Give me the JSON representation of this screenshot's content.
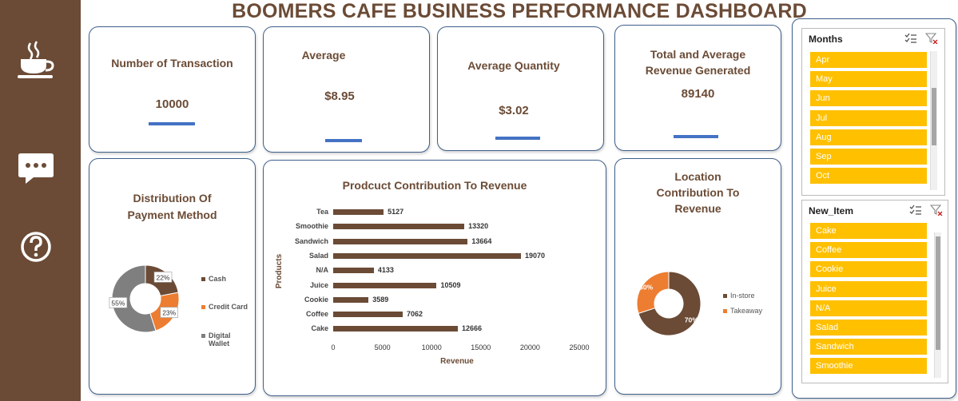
{
  "dashboard": {
    "title": "BOOMERS CAFE BUSINESS PERFORMANCE DASHBOARD"
  },
  "sidebar": {
    "icons": [
      "coffee-cup-icon",
      "chat-icon",
      "help-icon"
    ]
  },
  "kpis": {
    "transactions": {
      "label": "Number of Transaction",
      "value": "10000"
    },
    "average": {
      "label": "Average",
      "value": "$8.95"
    },
    "avg_quantity": {
      "label": "Average Quantity",
      "value": "$3.02"
    },
    "revenue": {
      "label_line1": "Total and Average",
      "label_line2": "Revenue Generated",
      "value": "89140"
    }
  },
  "payment_chart": {
    "title_line1": "Distribution Of",
    "title_line2": "Payment Method",
    "legend": [
      "Cash",
      "Credit Card",
      "Digital",
      "Wallet"
    ],
    "colors": {
      "cash": "#6b4b36",
      "credit": "#ed7d31",
      "digital": "#7f7f7f"
    }
  },
  "location_chart": {
    "title_line1": "Location",
    "title_line2": "Contribution To",
    "title_line3": "Revenue",
    "legend": [
      "In-store",
      "Takeaway"
    ]
  },
  "chart_data": [
    {
      "type": "pie",
      "title": "Distribution Of Payment Method",
      "categories": [
        "Cash",
        "Credit Card",
        "Digital Wallet"
      ],
      "values": [
        22,
        23,
        55
      ],
      "labels": [
        "22%",
        "23%",
        "55%"
      ]
    },
    {
      "type": "bar",
      "orientation": "horizontal",
      "title": "Prodcuct Contribution To Revenue",
      "xlabel": "Revenue",
      "ylabel": "Products",
      "categories": [
        "Tea",
        "Smoothie",
        "Sandwich",
        "Salad",
        "N/A",
        "Juice",
        "Cookie",
        "Coffee",
        "Cake"
      ],
      "values": [
        5127,
        13320,
        13664,
        19070,
        4133,
        10509,
        3589,
        7062,
        12666
      ],
      "value_labels": [
        "5127",
        "13320",
        "13664",
        "19070",
        "4133",
        "10509",
        "3589",
        "7062",
        "12666"
      ],
      "xlim": [
        0,
        25000
      ],
      "xticks": [
        "0",
        "5000",
        "10000",
        "15000",
        "20000",
        "25000"
      ]
    },
    {
      "type": "pie",
      "title": "Location Contribution To Revenue",
      "categories": [
        "In-store",
        "Takeaway"
      ],
      "values": [
        70,
        30
      ],
      "labels": [
        "70%",
        "30%"
      ]
    }
  ],
  "slicers": {
    "months": {
      "title": "Months",
      "items": [
        "Apr",
        "May",
        "Jun",
        "Jul",
        "Aug",
        "Sep",
        "Oct"
      ]
    },
    "new_item": {
      "title": "New_Item",
      "items": [
        "Cake",
        "Coffee",
        "Cookie",
        "Juice",
        "N/A",
        "Salad",
        "Sandwich",
        "Smoothie"
      ]
    }
  }
}
